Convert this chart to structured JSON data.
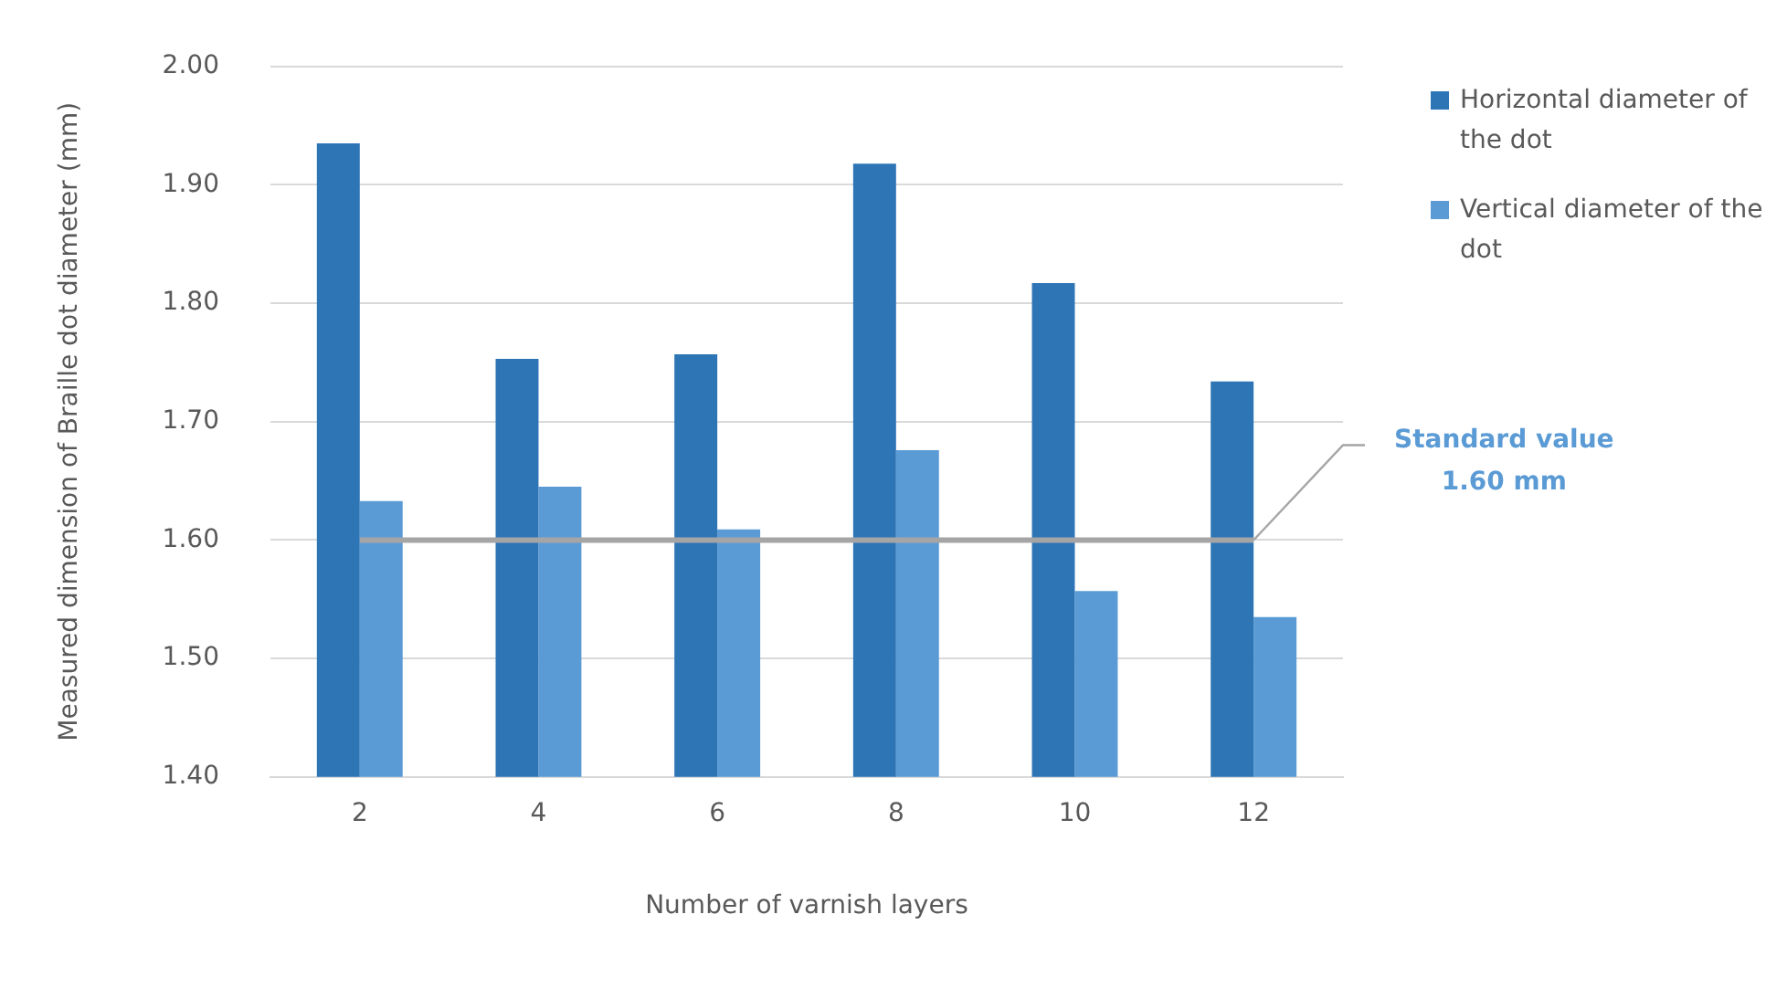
{
  "chart_data": {
    "type": "bar",
    "xlabel": "Number of varnish layers",
    "ylabel": "Measured dimension of Braille dot diameter (mm)",
    "categories": [
      "2",
      "4",
      "6",
      "8",
      "10",
      "12"
    ],
    "series": [
      {
        "name": "Horizontal diameter of the dot",
        "color": "#2e75b6",
        "values": [
          1.935,
          1.753,
          1.757,
          1.918,
          1.817,
          1.734
        ]
      },
      {
        "name": "Vertical diameter of the dot",
        "color": "#5b9bd5",
        "values": [
          1.633,
          1.645,
          1.609,
          1.676,
          1.557,
          1.535
        ]
      }
    ],
    "ylim": [
      1.4,
      2.0
    ],
    "yticks": [
      {
        "value": 1.4,
        "label": "1.40"
      },
      {
        "value": 1.5,
        "label": "1.50"
      },
      {
        "value": 1.6,
        "label": "1.60"
      },
      {
        "value": 1.7,
        "label": "1.70"
      },
      {
        "value": 1.8,
        "label": "1.80"
      },
      {
        "value": 1.9,
        "label": "1.90"
      },
      {
        "value": 2.0,
        "label": "2.00"
      }
    ],
    "grid": "y",
    "legend": "right",
    "ref_lines": [
      {
        "axis": "y",
        "value": 1.6,
        "label": "Standard value\n1.60 mm",
        "color": "#a5a5a5"
      }
    ]
  }
}
